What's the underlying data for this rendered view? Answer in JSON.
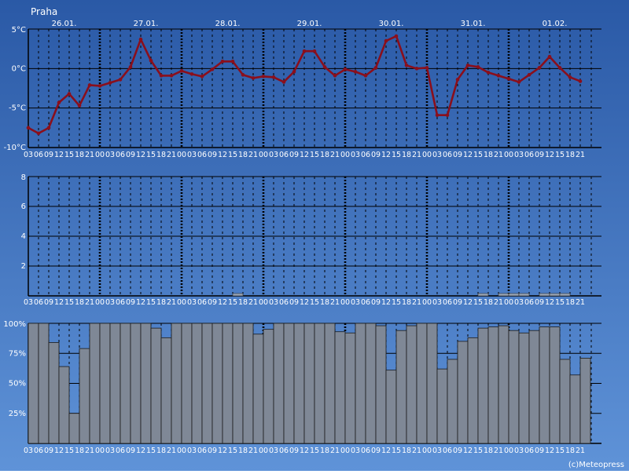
{
  "title": "Praha",
  "credit": "(c)Meteopress",
  "colors": {
    "bg_top": "#2a59a6",
    "bg_bottom": "#5f93d8",
    "plot_bg": "#3f74c4",
    "temperature_line": "#8a0f1c",
    "cloud_fill": "#7f8896",
    "grid": "#000000",
    "text": "#ffffff"
  },
  "time_axis": {
    "day_labels": [
      "26.01.",
      "27.01.",
      "28.01.",
      "29.01.",
      "30.01.",
      "31.01.",
      "01.02."
    ],
    "hour_labels": [
      "03",
      "06",
      "09",
      "12",
      "15",
      "18",
      "21",
      "00",
      "03",
      "06",
      "09",
      "12",
      "15",
      "18",
      "21",
      "00",
      "03",
      "06",
      "09",
      "12",
      "15",
      "18",
      "21",
      "00",
      "03",
      "06",
      "09",
      "12",
      "15",
      "18",
      "21",
      "00",
      "03",
      "06",
      "09",
      "12",
      "15",
      "18",
      "21",
      "00",
      "03",
      "06",
      "09",
      "12",
      "15",
      "18",
      "21",
      "00",
      "03",
      "06",
      "09",
      "12",
      "15",
      "18",
      "21"
    ]
  },
  "chart_data": [
    {
      "type": "line",
      "name": "temperature",
      "ylim": [
        -10,
        5
      ],
      "y_tick_labels": [
        "5°C",
        "0°C",
        "-5°C",
        "-10°C"
      ],
      "y_tick_values": [
        5,
        0,
        -5,
        -10
      ],
      "values": [
        -7.5,
        -8.2,
        -7.5,
        -4.3,
        -3.2,
        -4.7,
        -2.1,
        -2.2,
        -1.8,
        -1.4,
        0.2,
        3.7,
        1.0,
        -0.9,
        -0.9,
        -0.3,
        -0.7,
        -1.0,
        -0.1,
        0.9,
        0.9,
        -0.8,
        -1.2,
        -1.0,
        -1.1,
        -1.7,
        -0.4,
        2.2,
        2.2,
        0.2,
        -0.9,
        -0.1,
        -0.4,
        -0.9,
        0.1,
        3.5,
        4.1,
        0.4,
        0.0,
        0.1,
        -5.9,
        -5.9,
        -1.4,
        0.4,
        0.2,
        -0.5,
        -0.9,
        -1.3,
        -1.7,
        -0.8,
        0.1,
        1.5,
        0.1,
        -1.1,
        -1.6
      ]
    },
    {
      "type": "bar",
      "name": "precipitation",
      "ylim": [
        0,
        8
      ],
      "y_tick_labels": [
        "8",
        "6",
        "4",
        "2"
      ],
      "y_tick_values": [
        8,
        6,
        4,
        2
      ],
      "values": [
        0,
        0,
        0,
        0,
        0,
        0,
        0,
        0,
        0,
        0,
        0,
        0,
        0,
        0,
        0,
        0,
        0,
        0,
        0,
        0,
        0.1,
        0,
        0,
        0,
        0,
        0,
        0,
        0,
        0,
        0,
        0,
        0,
        0,
        0,
        0,
        0,
        0,
        0,
        0,
        0,
        0,
        0,
        0,
        0,
        0.1,
        0,
        0.2,
        0.1,
        0.1,
        0,
        0.1,
        0.1,
        0.1,
        0,
        0
      ]
    },
    {
      "type": "bar",
      "name": "cloudiness",
      "ylim": [
        0,
        100
      ],
      "y_tick_labels": [
        "100%",
        "75%",
        "50%",
        "25%"
      ],
      "y_tick_values": [
        100,
        75,
        50,
        25
      ],
      "values": [
        100,
        100,
        84,
        64,
        25,
        79,
        100,
        100,
        100,
        100,
        100,
        100,
        96,
        88,
        100,
        100,
        100,
        100,
        100,
        100,
        100,
        100,
        91,
        95,
        100,
        100,
        100,
        100,
        100,
        100,
        93,
        92,
        100,
        100,
        98,
        61,
        94,
        98,
        100,
        100,
        62,
        70,
        85,
        88,
        96,
        97,
        98,
        94,
        92,
        94,
        97,
        97,
        70,
        57,
        71
      ]
    }
  ]
}
